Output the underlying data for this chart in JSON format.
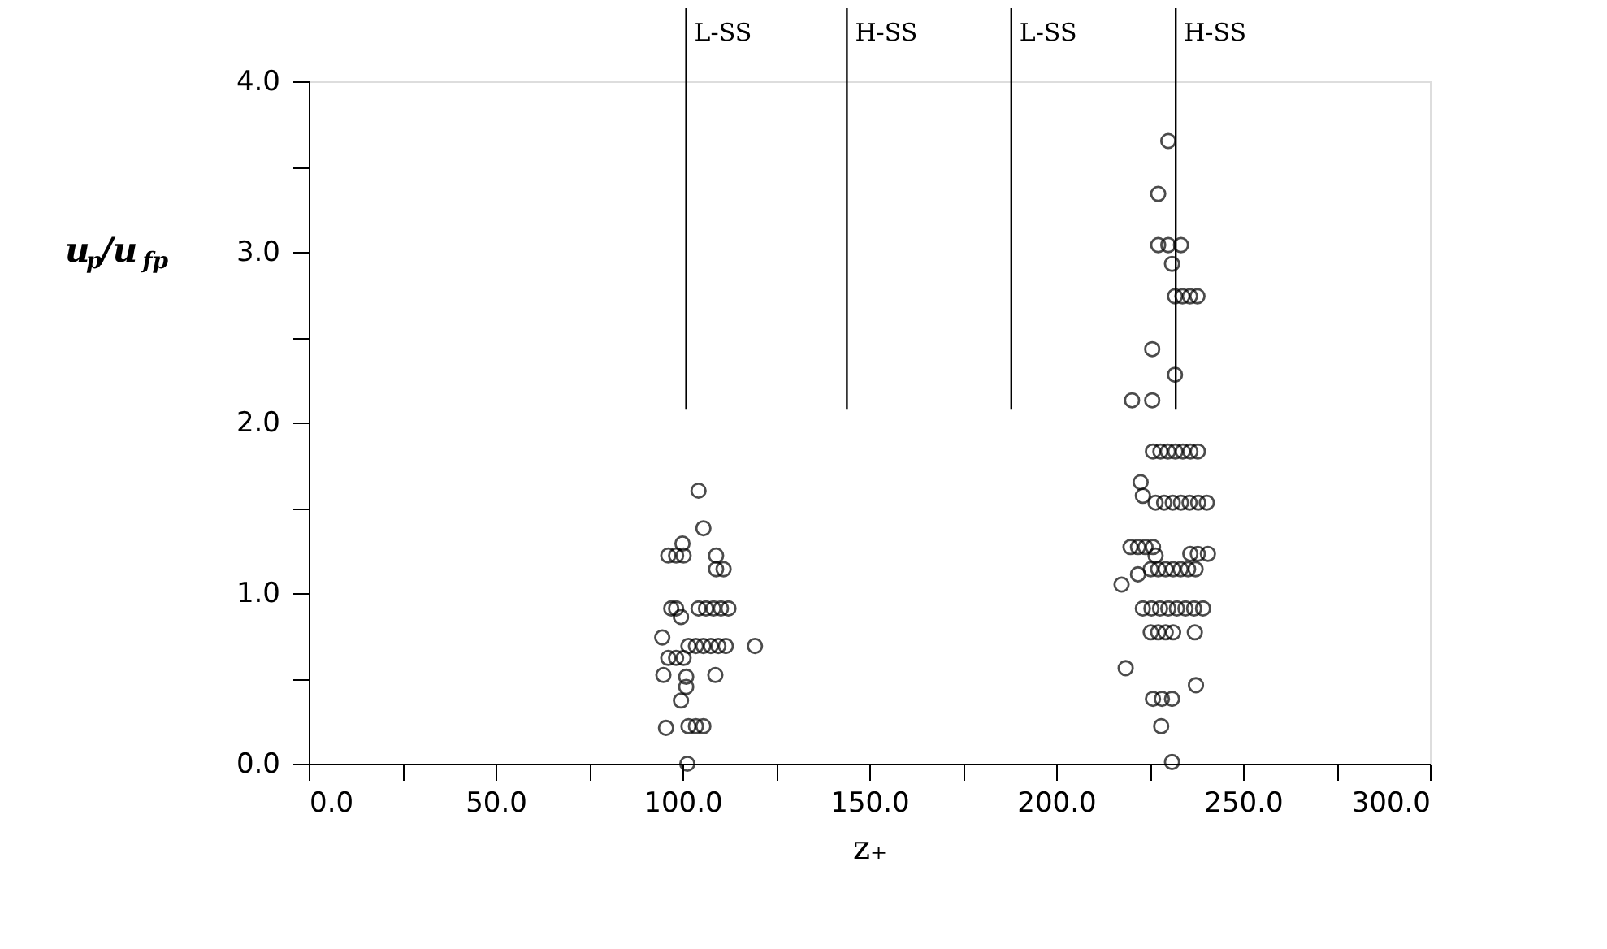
{
  "chart_data": {
    "type": "scatter",
    "xlabel": "z₊",
    "ylabel": "u$_{p}$/u$_{fp}$",
    "xlim": [
      0,
      300
    ],
    "ylim": [
      0,
      4
    ],
    "xticks": [
      {
        "value": 0,
        "label": "0.0"
      },
      {
        "value": 25,
        "label": null
      },
      {
        "value": 50,
        "label": "50.0"
      },
      {
        "value": 75,
        "label": null
      },
      {
        "value": 100,
        "label": "100.0"
      },
      {
        "value": 125,
        "label": null
      },
      {
        "value": 150,
        "label": "150.0"
      },
      {
        "value": 175,
        "label": null
      },
      {
        "value": 200,
        "label": "200.0"
      },
      {
        "value": 225,
        "label": null
      },
      {
        "value": 250,
        "label": "250.0"
      },
      {
        "value": 275,
        "label": null
      },
      {
        "value": 300,
        "label": "300.0"
      }
    ],
    "yticks": [
      {
        "value": 0,
        "label": "0.0"
      },
      {
        "value": 0.5,
        "label": null
      },
      {
        "value": 1,
        "label": "1.0"
      },
      {
        "value": 1.5,
        "label": null
      },
      {
        "value": 2,
        "label": "2.0"
      },
      {
        "value": 2.5,
        "label": null
      },
      {
        "value": 3,
        "label": "3.0"
      },
      {
        "value": 3.5,
        "label": null
      },
      {
        "value": 4,
        "label": "4.0"
      }
    ],
    "marker": "circle",
    "grid": false,
    "legend": false,
    "ref_lines": [
      {
        "axis": "x",
        "value": 101,
        "label": "L-SS"
      },
      {
        "axis": "x",
        "value": 144,
        "label": "H-SS"
      },
      {
        "axis": "x",
        "value": 188,
        "label": "L-SS"
      },
      {
        "axis": "x",
        "value": 232,
        "label": "H-SS"
      }
    ],
    "series": [
      {
        "color": "#000000",
        "x": [
          104.3,
          105.6,
          96.2,
          98.3,
          100.3,
          100,
          109,
          111,
          109,
          97,
          98.3,
          104.3,
          106.3,
          108.3,
          110.3,
          112.3,
          99.6,
          94.6,
          101.6,
          103.6,
          105.6,
          107.6,
          109.6,
          111.6,
          119.4,
          96.2,
          98.3,
          100.3,
          94.9,
          101,
          108.8,
          101,
          99.6,
          95.6,
          101.6,
          103.6,
          105.6,
          101.3,
          230.0,
          227.3,
          227.3,
          230.0,
          233.4,
          231,
          231.8,
          233.8,
          235.8,
          237.8,
          225.7,
          231.8,
          220.3,
          225.7,
          225.9,
          227.9,
          229.9,
          231.9,
          233.9,
          235.9,
          237.9,
          222.6,
          223.2,
          226.6,
          228.9,
          231.2,
          233.4,
          235.7,
          238.0,
          240.3,
          219.9,
          221.9,
          223.9,
          225.9,
          235.9,
          237.9,
          240.6,
          226.6,
          225.3,
          227.3,
          229.3,
          231.3,
          233.3,
          235.3,
          237.3,
          217.5,
          221.9,
          223.2,
          225.5,
          227.8,
          230.0,
          232.3,
          234.6,
          236.9,
          239.3,
          225.3,
          227.3,
          229.3,
          231.3,
          237.1,
          218.6,
          237.4,
          225.9,
          228.3,
          231.0,
          228.1,
          231
        ],
        "values": [
          1.6,
          1.38,
          1.22,
          1.22,
          1.22,
          1.29,
          1.22,
          1.14,
          1.14,
          0.91,
          0.91,
          0.91,
          0.91,
          0.91,
          0.91,
          0.91,
          0.86,
          0.74,
          0.69,
          0.69,
          0.69,
          0.69,
          0.69,
          0.69,
          0.69,
          0.62,
          0.62,
          0.62,
          0.52,
          0.51,
          0.52,
          0.45,
          0.37,
          0.21,
          0.22,
          0.22,
          0.22,
          0.0,
          3.65,
          3.34,
          3.04,
          3.04,
          3.04,
          2.93,
          2.74,
          2.74,
          2.74,
          2.74,
          2.43,
          2.28,
          2.13,
          2.13,
          1.83,
          1.83,
          1.83,
          1.83,
          1.83,
          1.83,
          1.83,
          1.65,
          1.57,
          1.53,
          1.53,
          1.53,
          1.53,
          1.53,
          1.53,
          1.53,
          1.27,
          1.27,
          1.27,
          1.27,
          1.23,
          1.23,
          1.23,
          1.22,
          1.14,
          1.14,
          1.14,
          1.14,
          1.14,
          1.14,
          1.14,
          1.05,
          1.11,
          0.91,
          0.91,
          0.91,
          0.91,
          0.91,
          0.91,
          0.91,
          0.91,
          0.77,
          0.77,
          0.77,
          0.77,
          0.77,
          0.56,
          0.46,
          0.38,
          0.38,
          0.38,
          0.22,
          0.01
        ]
      }
    ]
  }
}
